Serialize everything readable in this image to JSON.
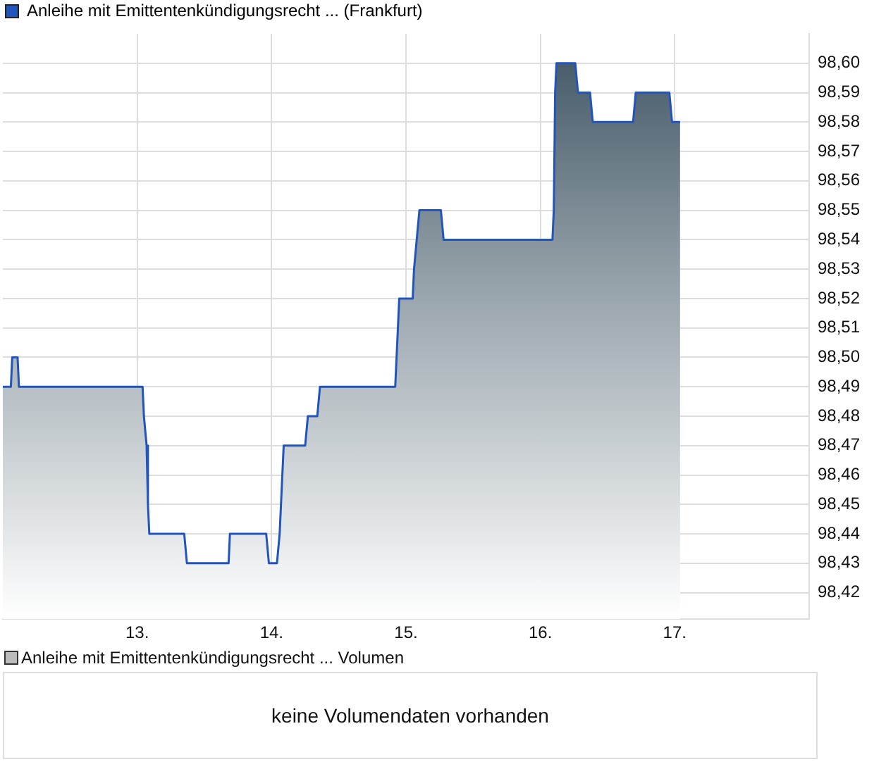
{
  "chart_data": [
    {
      "type": "area",
      "x": [
        12.0,
        12.06,
        12.07,
        12.11,
        12.12,
        13.04,
        13.05,
        13.07,
        13.08,
        13.09,
        13.35,
        13.37,
        13.68,
        13.69,
        13.96,
        13.98,
        14.04,
        14.06,
        14.08,
        14.09,
        14.25,
        14.27,
        14.34,
        14.36,
        14.92,
        14.93,
        14.95,
        15.05,
        15.06,
        15.08,
        15.1,
        15.26,
        15.28,
        16.09,
        16.1,
        16.11,
        16.12,
        16.26,
        16.28,
        16.37,
        16.39,
        16.69,
        16.71,
        16.96,
        16.98,
        17.04
      ],
      "series": [
        {
          "name": "Anleihe mit Emittentenkündigungsrecht ... (Frankfurt)",
          "color": "#2255bb",
          "values": [
            98.49,
            98.49,
            98.5,
            98.5,
            98.49,
            98.49,
            98.48,
            98.47,
            98.45,
            98.44,
            98.44,
            98.43,
            98.43,
            98.44,
            98.44,
            98.43,
            98.43,
            98.44,
            98.46,
            98.47,
            98.47,
            98.48,
            98.48,
            98.49,
            98.49,
            98.5,
            98.52,
            98.52,
            98.53,
            98.54,
            98.55,
            98.55,
            98.54,
            98.54,
            98.55,
            98.59,
            98.6,
            98.6,
            98.59,
            98.59,
            98.58,
            98.58,
            98.59,
            98.59,
            98.58,
            98.58
          ]
        }
      ],
      "xlim": [
        12,
        18
      ],
      "xticks": [
        {
          "value": 13,
          "label": "13."
        },
        {
          "value": 14,
          "label": "14."
        },
        {
          "value": 15,
          "label": "15."
        },
        {
          "value": 16,
          "label": "16."
        },
        {
          "value": 17,
          "label": "17."
        }
      ],
      "ylim": [
        98.411,
        98.61
      ],
      "yticks": [
        {
          "value": 98.42,
          "label": "98,42"
        },
        {
          "value": 98.43,
          "label": "98,43"
        },
        {
          "value": 98.44,
          "label": "98,44"
        },
        {
          "value": 98.45,
          "label": "98,45"
        },
        {
          "value": 98.46,
          "label": "98,46"
        },
        {
          "value": 98.47,
          "label": "98,47"
        },
        {
          "value": 98.48,
          "label": "98,48"
        },
        {
          "value": 98.49,
          "label": "98,49"
        },
        {
          "value": 98.5,
          "label": "98,50"
        },
        {
          "value": 98.51,
          "label": "98,51"
        },
        {
          "value": 98.52,
          "label": "98,52"
        },
        {
          "value": 98.53,
          "label": "98,53"
        },
        {
          "value": 98.54,
          "label": "98,54"
        },
        {
          "value": 98.55,
          "label": "98,55"
        },
        {
          "value": 98.56,
          "label": "98,56"
        },
        {
          "value": 98.57,
          "label": "98,57"
        },
        {
          "value": 98.58,
          "label": "98,58"
        },
        {
          "value": 98.59,
          "label": "98,59"
        },
        {
          "value": 98.6,
          "label": "98,60"
        }
      ],
      "grid": true,
      "legend": "top left"
    },
    {
      "type": "other",
      "title": "Anleihe mit Emittentenkündigungsrecht ... Volumen",
      "annotations": [
        "keine Volumendaten vorhanden"
      ]
    }
  ]
}
